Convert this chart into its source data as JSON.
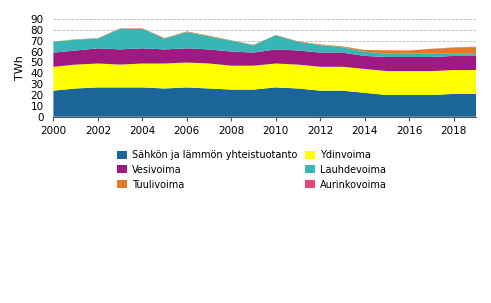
{
  "years": [
    2000,
    2001,
    2002,
    2003,
    2004,
    2005,
    2006,
    2007,
    2008,
    2009,
    2010,
    2011,
    2012,
    2013,
    2014,
    2015,
    2016,
    2017,
    2018,
    2019
  ],
  "sahko_lampo": [
    24,
    26,
    27,
    27,
    27,
    26,
    27,
    26,
    25,
    25,
    27,
    26,
    24,
    24,
    22,
    20,
    20,
    20,
    21,
    21
  ],
  "ydinvoima": [
    22,
    22,
    22,
    21,
    22,
    23,
    23,
    23,
    22,
    22,
    22,
    22,
    22,
    22,
    22,
    22,
    22,
    22,
    22,
    22
  ],
  "vesivoima": [
    13,
    13,
    14,
    14,
    14,
    13,
    13,
    13,
    13,
    12,
    13,
    13,
    13,
    13,
    12,
    13,
    13,
    13,
    13,
    13
  ],
  "lauhdevoima": [
    10,
    10,
    9,
    19,
    18,
    10,
    15,
    12,
    10,
    7,
    13,
    8,
    7,
    5,
    4,
    3,
    3,
    3,
    2,
    2
  ],
  "tuulivoima": [
    0.2,
    0.3,
    0.4,
    0.5,
    0.5,
    0.5,
    0.6,
    0.6,
    0.4,
    0.3,
    0.3,
    0.5,
    0.6,
    0.8,
    1.5,
    3.2,
    3.0,
    4.5,
    5.5,
    5.9
  ],
  "aurinkovoima": [
    0.0,
    0.0,
    0.0,
    0.0,
    0.0,
    0.0,
    0.0,
    0.0,
    0.0,
    0.0,
    0.0,
    0.0,
    0.0,
    0.0,
    0.0,
    0.0,
    0.0,
    0.1,
    0.3,
    0.6
  ],
  "colors": {
    "sahko_lampo": "#1b6598",
    "ydinvoima": "#ffff00",
    "vesivoima": "#9e1a80",
    "lauhdevoima": "#3ab5b5",
    "tuulivoima": "#e07b2a",
    "aurinkovoima": "#e8447a"
  },
  "ylabel": "TWh",
  "ylim": [
    0,
    90
  ],
  "yticks": [
    0,
    10,
    20,
    30,
    40,
    50,
    60,
    70,
    80,
    90
  ],
  "bg_color": "#ffffff",
  "grid_color": "#bbbbbb",
  "legend": [
    "Sähkön ja lämmön yhteistuotanto",
    "Ydinvoima",
    "Vesivoima",
    "Lauhdevoima",
    "Tuulivoima",
    "Aurinkovoima"
  ]
}
